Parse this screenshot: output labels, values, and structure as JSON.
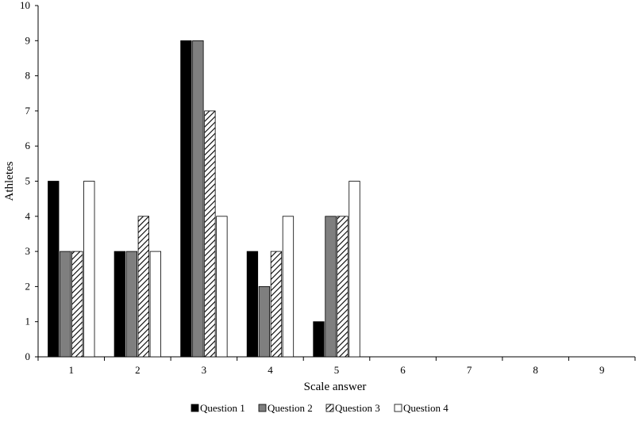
{
  "chart_data": {
    "type": "bar",
    "title": "",
    "xlabel": "Scale answer",
    "ylabel": "Athletes",
    "categories": [
      "1",
      "2",
      "3",
      "4",
      "5",
      "6",
      "7",
      "8",
      "9"
    ],
    "ylim": [
      0,
      10
    ],
    "yticks": [
      "0",
      "1",
      "2",
      "3",
      "4",
      "5",
      "6",
      "7",
      "8",
      "9",
      "10"
    ],
    "grid": false,
    "legend_position": "bottom",
    "series": [
      {
        "name": "Question 1",
        "values": [
          5,
          3,
          9,
          3,
          1,
          0,
          0,
          0,
          0
        ],
        "fill": "solid-black"
      },
      {
        "name": "Question 2",
        "values": [
          3,
          3,
          9,
          2,
          4,
          0,
          0,
          0,
          0
        ],
        "fill": "solid-gray"
      },
      {
        "name": "Question 3",
        "values": [
          3,
          4,
          7,
          3,
          4,
          0,
          0,
          0,
          0
        ],
        "fill": "diagonal-hatch"
      },
      {
        "name": "Question 4",
        "values": [
          5,
          3,
          4,
          4,
          5,
          0,
          0,
          0,
          0
        ],
        "fill": "white"
      }
    ],
    "colors": {
      "black": "#000000",
      "gray": "#7f7f7f",
      "white": "#ffffff",
      "outline": "#000000"
    }
  }
}
